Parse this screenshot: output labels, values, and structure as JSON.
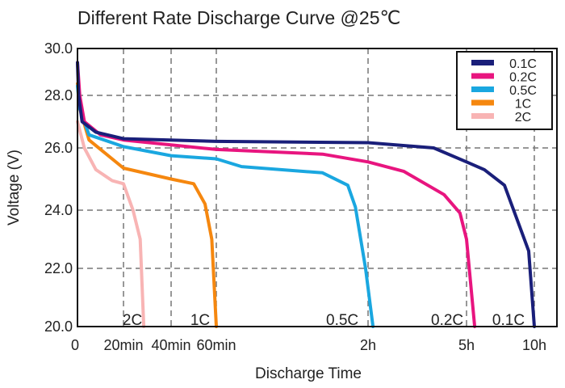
{
  "chart_data": {
    "type": "line",
    "title": "Different Rate Discharge Curve @25℃",
    "xlabel": "Discharge Time",
    "ylabel": "Voltage (V)",
    "ylim": [
      20,
      30
    ],
    "y_ticks": [
      20,
      22,
      24,
      26,
      28,
      30
    ],
    "y_tick_labels": [
      "20.0",
      "22.0",
      "24.0",
      "26.0",
      "28.0",
      "30.0"
    ],
    "x_unit": "minutes",
    "x_ticks": [
      0,
      20,
      40,
      60,
      120,
      300,
      600
    ],
    "x_tick_labels": [
      "0",
      "20min",
      "40min",
      "60min",
      "2h",
      "5h",
      "10h"
    ],
    "grid": true,
    "legend_position": "top-right",
    "series": [
      {
        "name": "0.1C",
        "color": "#1a1f7a",
        "end_label": "0.1C",
        "points": [
          [
            0,
            29.4
          ],
          [
            0.5,
            28
          ],
          [
            2,
            27
          ],
          [
            8,
            26.6
          ],
          [
            20,
            26.35
          ],
          [
            60,
            26.25
          ],
          [
            120,
            26.2
          ],
          [
            240,
            26.0
          ],
          [
            300,
            25.55
          ],
          [
            379,
            25.3
          ],
          [
            468,
            24.8
          ],
          [
            575,
            22.6
          ],
          [
            600,
            20
          ]
        ]
      },
      {
        "name": "0.2C",
        "color": "#e8157f",
        "end_label": "0.2C",
        "points": [
          [
            0,
            29.4
          ],
          [
            1,
            28
          ],
          [
            3,
            27
          ],
          [
            10,
            26.5
          ],
          [
            20,
            26.3
          ],
          [
            60,
            25.95
          ],
          [
            102,
            25.8
          ],
          [
            120,
            25.55
          ],
          [
            185,
            25.25
          ],
          [
            259,
            24.5
          ],
          [
            288,
            23.9
          ],
          [
            300,
            23.0
          ],
          [
            336,
            20
          ]
        ]
      },
      {
        "name": "0.5C",
        "color": "#1aa7e0",
        "end_label": "0.5C",
        "points": [
          [
            0,
            28.4
          ],
          [
            1,
            27.5
          ],
          [
            5,
            26.5
          ],
          [
            20,
            26.05
          ],
          [
            40,
            25.75
          ],
          [
            60,
            25.65
          ],
          [
            70,
            25.4
          ],
          [
            102,
            25.2
          ],
          [
            112,
            24.8
          ],
          [
            115,
            24.1
          ],
          [
            119,
            22.0
          ],
          [
            129,
            20
          ]
        ]
      },
      {
        "name": "1C",
        "color": "#f5870f",
        "end_label": "1C",
        "points": [
          [
            0,
            28.5
          ],
          [
            1,
            27.5
          ],
          [
            5,
            26.3
          ],
          [
            20,
            25.35
          ],
          [
            40,
            25.0
          ],
          [
            50,
            24.85
          ],
          [
            55,
            24.2
          ],
          [
            58,
            23.0
          ],
          [
            60,
            20
          ]
        ]
      },
      {
        "name": "2C",
        "color": "#f8b4b4",
        "end_label": "2C",
        "points": [
          [
            0,
            27.0
          ],
          [
            3,
            26.0
          ],
          [
            8,
            25.3
          ],
          [
            15,
            24.95
          ],
          [
            20,
            24.85
          ],
          [
            24,
            24.0
          ],
          [
            27,
            23.0
          ],
          [
            28.5,
            20
          ]
        ]
      }
    ]
  }
}
